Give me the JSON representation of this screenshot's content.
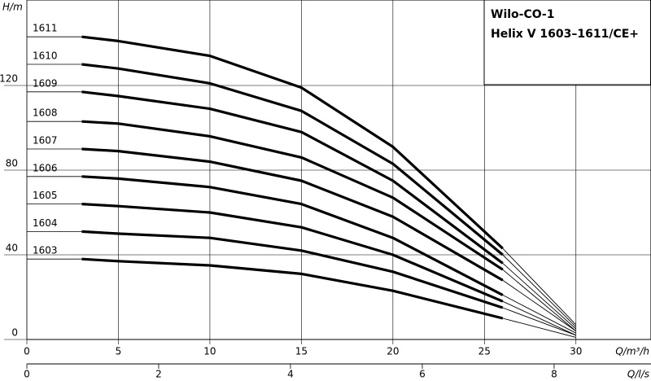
{
  "chart_data": {
    "type": "line",
    "title": "Wilo-CO-1",
    "subtitle": "Helix V 1603–1611/CE+",
    "y_label": "H/m",
    "x_label": "Q/m³/h",
    "x2_label": "Q/l/s",
    "x": [
      3,
      5,
      10,
      15,
      20,
      26,
      30
    ],
    "series": [
      {
        "name": "1611",
        "color": "#000000",
        "values": [
          143,
          141,
          134,
          119,
          91,
          43,
          7
        ]
      },
      {
        "name": "1610",
        "color": "#000000",
        "values": [
          130,
          128,
          121,
          108,
          83,
          40,
          6
        ]
      },
      {
        "name": "1609",
        "color": "#000000",
        "values": [
          117,
          115,
          109,
          98,
          75,
          36,
          5
        ]
      },
      {
        "name": "1608",
        "color": "#000000",
        "values": [
          103,
          102,
          96,
          86,
          67,
          33,
          4
        ]
      },
      {
        "name": "1607",
        "color": "#000000",
        "values": [
          90,
          89,
          84,
          75,
          58,
          28,
          4
        ]
      },
      {
        "name": "1606",
        "color": "#000000",
        "values": [
          77,
          76,
          72,
          64,
          48,
          21,
          3
        ]
      },
      {
        "name": "1605",
        "color": "#000000",
        "values": [
          64,
          63,
          60,
          53,
          40,
          18,
          2
        ]
      },
      {
        "name": "1604",
        "color": "#000000",
        "values": [
          51,
          50,
          48,
          42,
          32,
          15,
          2
        ]
      },
      {
        "name": "1603",
        "color": "#000000",
        "values": [
          38,
          37,
          35,
          31,
          23,
          10,
          1
        ]
      }
    ],
    "xlim": [
      0,
      34.1
    ],
    "xticks": [
      0,
      5,
      10,
      15,
      20,
      25,
      30
    ],
    "x2lim": [
      0,
      9.47
    ],
    "x2ticks": [
      0,
      2,
      4,
      6,
      8
    ],
    "ylim": [
      0,
      160
    ],
    "yticks": [
      0,
      40,
      80,
      120
    ],
    "grid": true
  }
}
